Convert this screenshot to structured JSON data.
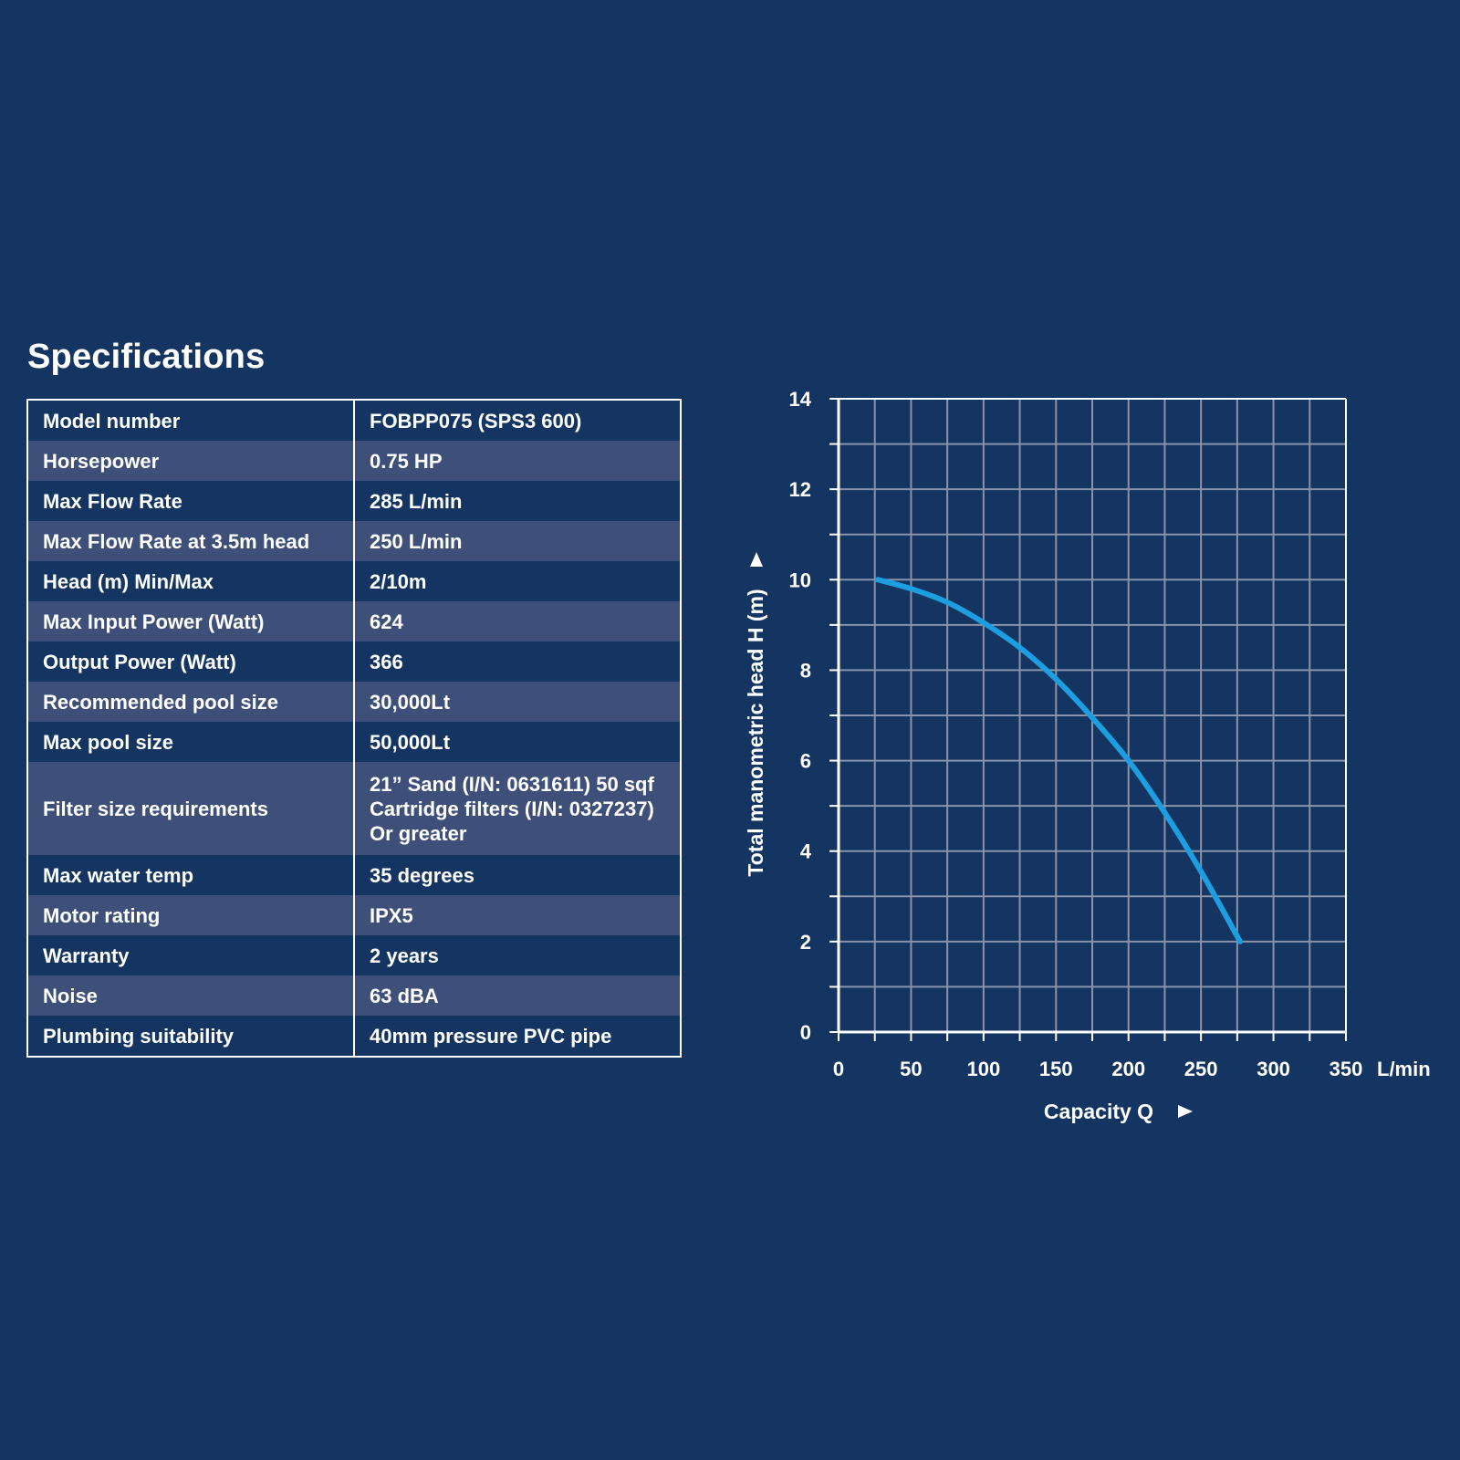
{
  "page": {
    "title": "Specifications"
  },
  "specs": [
    {
      "label": "Model number",
      "value": [
        "FOBPP075 (SPS3 600)"
      ]
    },
    {
      "label": "Horsepower",
      "value": [
        "0.75 HP"
      ]
    },
    {
      "label": "Max Flow Rate",
      "value": [
        "285 L/min"
      ]
    },
    {
      "label": "Max Flow Rate at 3.5m head",
      "value": [
        "250 L/min"
      ]
    },
    {
      "label": "Head (m) Min/Max",
      "value": [
        "2/10m"
      ]
    },
    {
      "label": "Max Input Power (Watt)",
      "value": [
        "624"
      ]
    },
    {
      "label": "Output Power (Watt)",
      "value": [
        "366"
      ]
    },
    {
      "label": "Recommended pool size",
      "value": [
        "30,000Lt"
      ]
    },
    {
      "label": "Max pool size",
      "value": [
        "50,000Lt"
      ]
    },
    {
      "label": "Filter size requirements",
      "value": [
        "21” Sand (I/N: 0631611) 50 sqf",
        "Cartridge filters (I/N: 0327237)",
        "Or greater"
      ]
    },
    {
      "label": "Max water temp",
      "value": [
        "35 degrees"
      ]
    },
    {
      "label": "Motor rating",
      "value": [
        "IPX5"
      ]
    },
    {
      "label": "Warranty",
      "value": [
        "2 years"
      ]
    },
    {
      "label": "Noise",
      "value": [
        "63 dBA"
      ]
    },
    {
      "label": "Plumbing suitability",
      "value": [
        "40mm pressure PVC pipe"
      ]
    }
  ],
  "colors": {
    "background": "#143562",
    "row_alt": "#3e5079",
    "grid": "#8a93a8",
    "curve": "#1d9ee0",
    "text": "#ffffff"
  },
  "chart_data": {
    "type": "line",
    "title": "",
    "xlabel": "Capacity Q",
    "ylabel": "Total manometric head H (m)",
    "x_unit_label": "L/min",
    "x_ticks": [
      0,
      50,
      100,
      150,
      200,
      250,
      300,
      350
    ],
    "y_ticks": [
      0,
      2,
      4,
      6,
      8,
      10,
      12,
      14
    ],
    "xlim": [
      0,
      350
    ],
    "ylim": [
      0,
      14
    ],
    "grid": true,
    "series": [
      {
        "color": "#1d9ee0",
        "x": [
          27,
          50,
          75,
          100,
          125,
          150,
          175,
          200,
          225,
          250,
          277
        ],
        "y": [
          10.0,
          9.8,
          9.5,
          9.05,
          8.5,
          7.8,
          6.95,
          6.0,
          4.85,
          3.55,
          2.0
        ]
      }
    ]
  }
}
